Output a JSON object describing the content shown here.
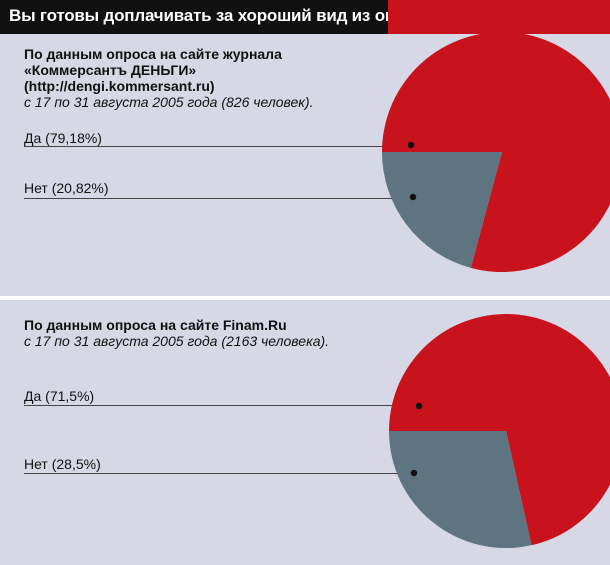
{
  "title": "Вы готовы доплачивать за хороший вид из окна?",
  "colors": {
    "yes": "#c8121c",
    "no": "#5e7480",
    "dot": "#111111"
  },
  "chart_data": [
    {
      "type": "pie",
      "heading": "По данным опроса на сайте журнала",
      "heading2": "«Коммерсантъ ДЕНЬГИ»",
      "source_url": "(http://dengi.kommersant.ru)",
      "period": "с 17 по 31 августа 2005 года (826 человек).",
      "slices": [
        {
          "label": "Да (79,18%)",
          "value": 79.18
        },
        {
          "label": "Нет (20,82%)",
          "value": 20.82
        }
      ]
    },
    {
      "type": "pie",
      "heading": "По данным опроса на сайте Finam.Ru",
      "period": "с 17 по 31 августа 2005 года (2163 человека).",
      "slices": [
        {
          "label": "Да (71,5%)",
          "value": 71.5
        },
        {
          "label": "Нет (28,5%)",
          "value": 28.5
        }
      ]
    }
  ]
}
